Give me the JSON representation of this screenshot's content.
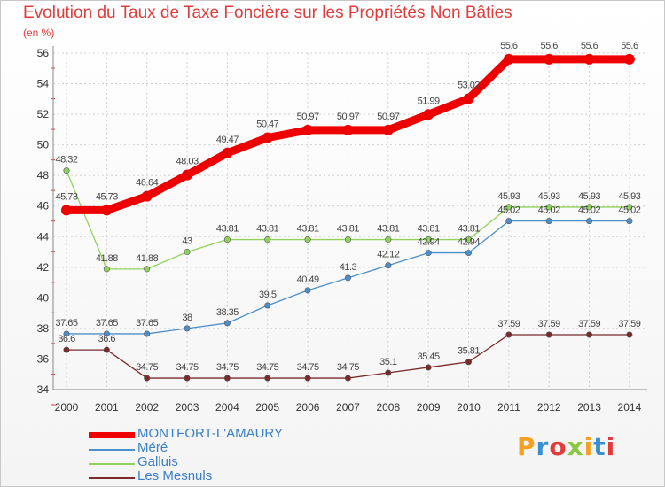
{
  "title": "Evolution du Taux de Taxe Foncière sur les Propriétés Non Bâties",
  "unit_label": "(en %)",
  "logo_text": "Proxiti",
  "logo_colors": [
    "#f4a020",
    "#3a8fd0",
    "#e03c3c",
    "#8dc63f",
    "#f4a020",
    "#3a8fd0",
    "#e03c3c"
  ],
  "chart_data": {
    "type": "line",
    "title": "Evolution du Taux de Taxe Foncière sur les Propriétés Non Bâties",
    "ylabel": "(en %)",
    "xlabel": "",
    "x": [
      "2000",
      "2001",
      "2002",
      "2003",
      "2004",
      "2005",
      "2006",
      "2007",
      "2008",
      "2009",
      "2010",
      "2011",
      "2012",
      "2013",
      "2014"
    ],
    "ylim": [
      34,
      56
    ],
    "yticks": [
      34,
      36,
      38,
      40,
      42,
      44,
      46,
      48,
      50,
      52,
      54,
      56
    ],
    "grid": true,
    "legend_position": "bottom-left",
    "series": [
      {
        "name": "MONTFORT-L'AMAURY",
        "color": "#ee0000",
        "values": [
          45.73,
          45.73,
          46.64,
          48.03,
          49.47,
          50.47,
          50.97,
          50.97,
          50.97,
          51.99,
          53.02,
          55.6,
          55.6,
          55.6,
          55.6
        ],
        "labels": [
          "45.73",
          "45.73",
          "46.64",
          "48.03",
          "49.47",
          "50.47",
          "50.97",
          "50.97",
          "50.97",
          "51.99",
          "53.02",
          "55.6",
          "55.6",
          "55.6",
          "55.6"
        ]
      },
      {
        "name": "Méré",
        "color": "#4d8fc8",
        "values": [
          37.65,
          37.65,
          37.65,
          38,
          38.35,
          39.5,
          40.49,
          41.3,
          42.12,
          42.94,
          42.94,
          45.02,
          45.02,
          45.02,
          45.02
        ],
        "labels": [
          "37.65",
          "37.65",
          "37.65",
          "38",
          "38.35",
          "39.5",
          "40.49",
          "41.3",
          "42.12",
          "42.94",
          "42.94",
          "45.02",
          "45.02",
          "45.02",
          "45.02"
        ]
      },
      {
        "name": "Galluis",
        "color": "#8fd45a",
        "values": [
          48.32,
          41.88,
          41.88,
          43,
          43.81,
          43.81,
          43.81,
          43.81,
          43.81,
          43.81,
          43.81,
          45.93,
          45.93,
          45.93,
          45.93
        ],
        "labels": [
          "48.32",
          "41.88",
          "41.88",
          "43",
          "43.81",
          "43.81",
          "43.81",
          "43.81",
          "43.81",
          "43.81",
          "43.81",
          "45.93",
          "45.93",
          "45.93",
          "45.93"
        ]
      },
      {
        "name": "Les Mesnuls",
        "color": "#7a2a2a",
        "values": [
          36.6,
          36.6,
          34.75,
          34.75,
          34.75,
          34.75,
          34.75,
          34.75,
          35.1,
          35.45,
          35.81,
          37.59,
          37.59,
          37.59,
          37.59
        ],
        "labels": [
          "36.6",
          "36.6",
          "34.75",
          "34.75",
          "34.75",
          "34.75",
          "34.75",
          "34.75",
          "35.1",
          "35.45",
          "35.81",
          "37.59",
          "37.59",
          "37.59",
          "37.59"
        ]
      }
    ]
  }
}
